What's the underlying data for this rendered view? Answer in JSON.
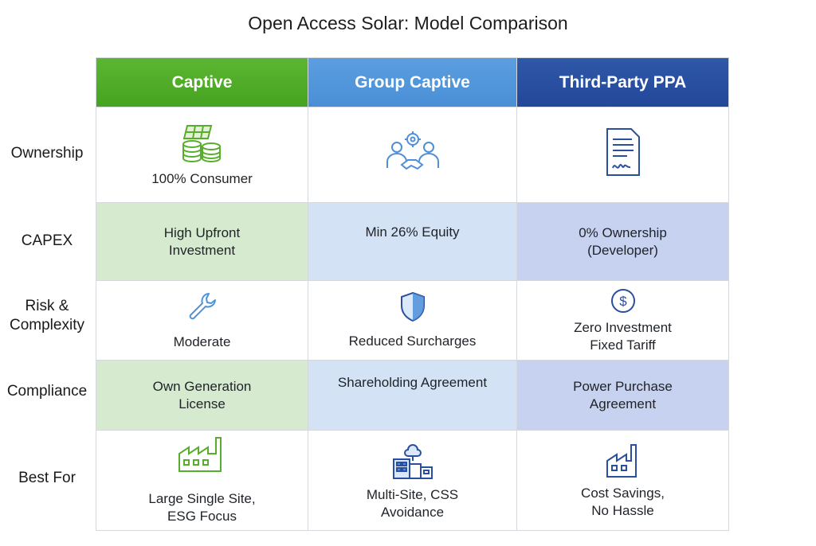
{
  "title": "Open Access Solar: Model Comparison",
  "columns": [
    "Captive",
    "Group Captive",
    "Third-Party PPA"
  ],
  "rows": [
    {
      "label": "Ownership",
      "cells": [
        {
          "text": "100% Consumer",
          "icon": "solar-coins-icon"
        },
        {
          "text": "",
          "icon": "partners-handshake-icon"
        },
        {
          "text": "",
          "icon": "signed-contract-icon"
        }
      ]
    },
    {
      "label": "CAPEX",
      "cells": [
        {
          "text": "High Upfront Investment"
        },
        {
          "text": "Min 26% Equity"
        },
        {
          "text": "0% Ownership (Developer)"
        }
      ]
    },
    {
      "label": "Risk & Complexity",
      "cells": [
        {
          "text": "Moderate",
          "icon": "wrench-icon"
        },
        {
          "text": "Reduced Surcharges",
          "icon": "shield-icon"
        },
        {
          "text": "Zero Investment Fixed Tariff",
          "icon": "dollar-coin-icon"
        }
      ]
    },
    {
      "label": "Compliance",
      "cells": [
        {
          "text": "Own Generation License"
        },
        {
          "text": "Shareholding Agreement"
        },
        {
          "text": "Power Purchase Agreement"
        }
      ]
    },
    {
      "label": "Best For",
      "cells": [
        {
          "text": "Large Single Site, ESG Focus",
          "icon": "factory-icon"
        },
        {
          "text": "Multi-Site, CSS Avoidance",
          "icon": "cloud-buildings-icon"
        },
        {
          "text": "Cost Savings, No Hassle",
          "icon": "small-factory-icon"
        }
      ]
    }
  ],
  "colors": {
    "captive": "#4ea82a",
    "group_captive": "#4f93d9",
    "third_party": "#294fa0"
  }
}
